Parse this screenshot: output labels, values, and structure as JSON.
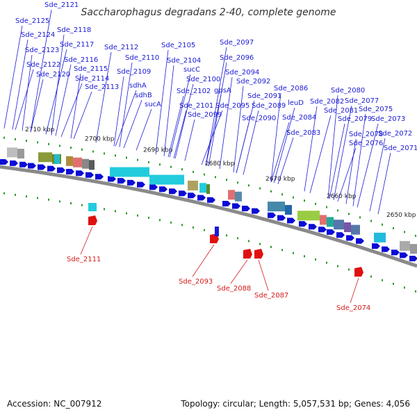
{
  "title": "Saccharophagus degradans 2-40, complete genome",
  "footer": {
    "accession": "Accession: NC_007912",
    "summary": "Topology: circular; Length: 5,057,531 bp; Genes: 4,056"
  },
  "colors": {
    "forward_label": "#1a1ad6",
    "reverse_label": "#d61a1a",
    "gene_arrow": "#0b0bd6",
    "backbone": "#8a8a8a",
    "tick": "#2a9a2a"
  },
  "kbp_ticks": [
    "2710 kbp",
    "2700 kbp",
    "2690 kbp",
    "2680 kbp",
    "2670 kbp",
    "2660 kbp",
    "2650 kbp"
  ],
  "forward_genes": [
    "Sde_2121",
    "Sde_2125",
    "Sde_2124",
    "Sde_2118",
    "Sde_2123",
    "Sde_2117",
    "Sde_2122",
    "Sde_2116",
    "Sde_2120",
    "Sde_2115",
    "Sde_2114",
    "Sde_2113",
    "Sde_2112",
    "Sde_2110",
    "Sde_2109",
    "sdhA",
    "sdhB",
    "sucA",
    "Sde_2105",
    "Sde_2104",
    "sucC",
    "Sde_2100",
    "Sde_2102",
    "Sde_2101",
    "Sde_2099",
    "Sde_2097",
    "Sde_2096",
    "gpsA",
    "Sde_2094",
    "Sde_2092",
    "Sde_2095",
    "Sde_2091",
    "Sde_2089",
    "Sde_2090",
    "Sde_2086",
    "leuD",
    "Sde_2084",
    "Sde_2083",
    "Sde_2082",
    "Sde_2080",
    "Sde_2081",
    "Sde_2077",
    "Sde_2079",
    "Sde_2075",
    "Sde_2078",
    "Sde_2073",
    "Sde_2076",
    "Sde_2072",
    "Sde_2071"
  ],
  "reverse_genes": [
    "Sde_2111",
    "Sde_2093",
    "Sde_2088",
    "Sde_2087",
    "Sde_2074"
  ]
}
